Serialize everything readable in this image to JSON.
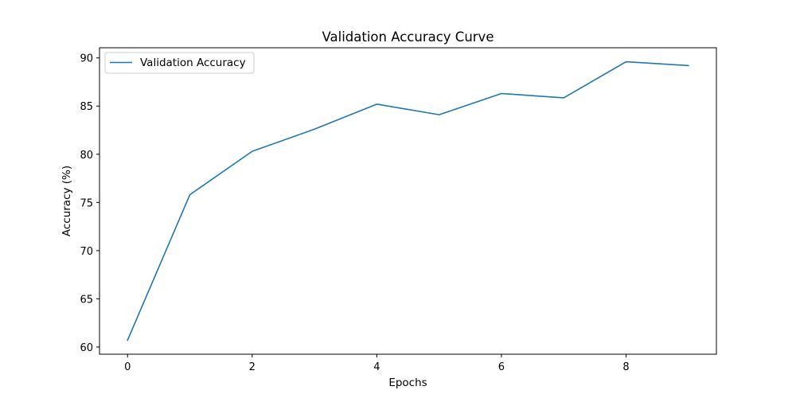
{
  "chart_data": {
    "type": "line",
    "title": "Validation Accuracy Curve",
    "xlabel": "Epochs",
    "ylabel": "Accuracy (%)",
    "x": [
      0,
      1,
      2,
      3,
      4,
      5,
      6,
      7,
      8,
      9
    ],
    "series": [
      {
        "name": "Validation Accuracy",
        "color": "#1f77b4",
        "values": [
          60.7,
          75.8,
          80.3,
          82.6,
          85.2,
          84.1,
          86.3,
          85.85,
          89.6,
          89.2
        ]
      }
    ],
    "xlim": [
      -0.45,
      9.45
    ],
    "ylim": [
      59.25,
      91.05
    ],
    "xticks": [
      0,
      2,
      4,
      6,
      8
    ],
    "yticks": [
      60,
      65,
      70,
      75,
      80,
      85,
      90
    ],
    "grid": false,
    "legend_position": "upper left"
  }
}
